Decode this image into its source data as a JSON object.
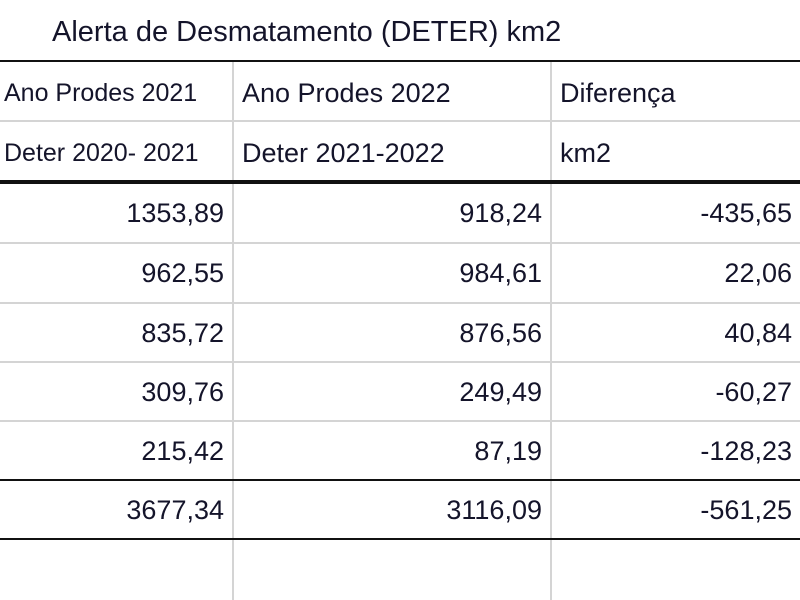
{
  "title": "Alerta de Desmatamento (DETER) km2",
  "columns": [
    {
      "header1": "Ano Prodes 2021",
      "header2": "Deter 2020- 2021"
    },
    {
      "header1": "Ano Prodes 2022",
      "header2": "Deter 2021-2022"
    },
    {
      "header1": "Diferença",
      "header2": "km2"
    }
  ],
  "rows": [
    [
      "1353,89",
      "918,24",
      "-435,65"
    ],
    [
      "962,55",
      "984,61",
      "22,06"
    ],
    [
      "835,72",
      "876,56",
      "40,84"
    ],
    [
      "309,76",
      "249,49",
      "-60,27"
    ],
    [
      "215,42",
      "87,19",
      "-128,23"
    ]
  ],
  "total": [
    "3677,34",
    "3116,09",
    "-561,25"
  ]
}
